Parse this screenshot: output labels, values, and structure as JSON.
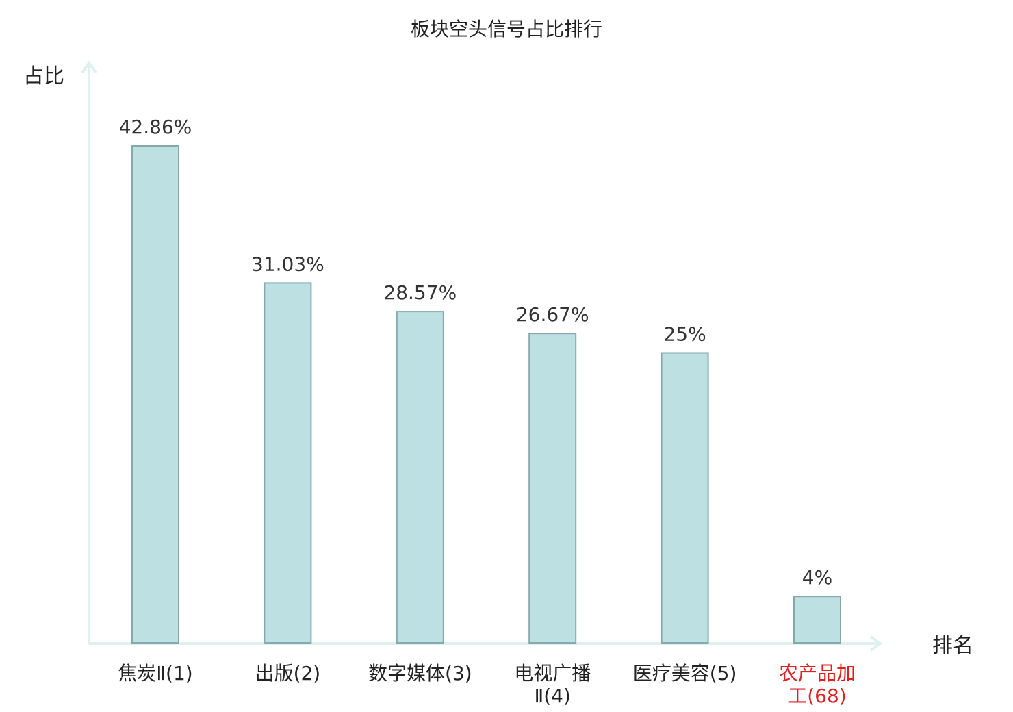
{
  "chart_data": {
    "type": "bar",
    "title": "板块空头信号占比排行",
    "ylabel": "占比",
    "xlabel": "排名",
    "ylim": [
      0,
      50
    ],
    "grid": false,
    "categories": [
      "焦炭Ⅱ(1)",
      "出版(2)",
      "数字媒体(3)",
      "电视广播Ⅱ(4)",
      "医疗美容(5)",
      "农产品加工(68)"
    ],
    "category_lines": [
      [
        "焦炭Ⅱ(1)"
      ],
      [
        "出版(2)"
      ],
      [
        "数字媒体(3)"
      ],
      [
        "电视广播",
        "Ⅱ(4)"
      ],
      [
        "医疗美容(5)"
      ],
      [
        "农产品加",
        "工(68)"
      ]
    ],
    "values": [
      42.86,
      31.03,
      28.57,
      26.67,
      25,
      4
    ],
    "value_labels": [
      "42.86%",
      "31.03%",
      "28.57%",
      "26.67%",
      "25%",
      "4%"
    ],
    "highlight_index": 5
  },
  "colors": {
    "bar_fill": "#bde0e3",
    "bar_stroke": "#86a9ab",
    "axis": "#dff1ef",
    "text": "#222222",
    "value_text": "#333333",
    "highlight": "#e02020"
  }
}
